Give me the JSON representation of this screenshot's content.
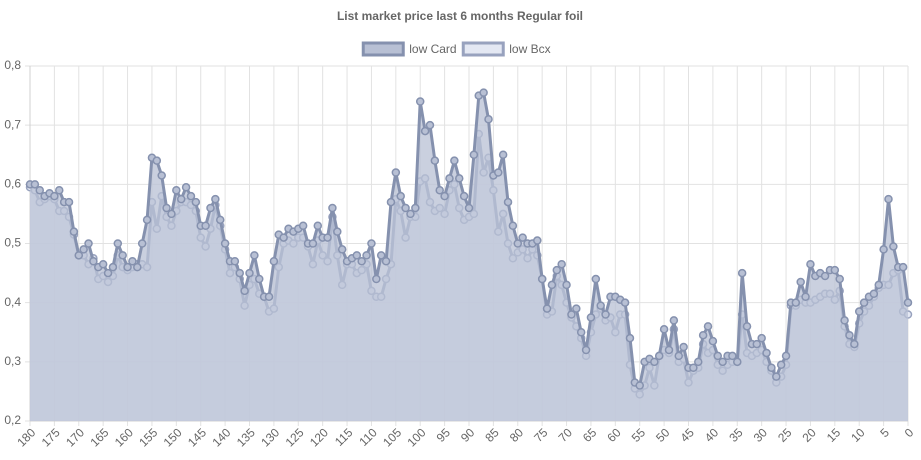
{
  "chart_data": {
    "type": "line",
    "title": "List market price last 6 months Regular foil",
    "categories": [
      180,
      null,
      null,
      null,
      null,
      175,
      null,
      null,
      null,
      null,
      170,
      null,
      null,
      null,
      null,
      165,
      null,
      null,
      null,
      null,
      160,
      null,
      null,
      null,
      null,
      155,
      null,
      null,
      null,
      null,
      150,
      null,
      null,
      null,
      null,
      145,
      null,
      null,
      null,
      null,
      140,
      null,
      null,
      null,
      null,
      135,
      null,
      null,
      null,
      null,
      130,
      null,
      null,
      null,
      null,
      125,
      null,
      null,
      null,
      null,
      120,
      null,
      null,
      null,
      null,
      115,
      null,
      null,
      null,
      null,
      110,
      null,
      null,
      null,
      null,
      105,
      null,
      null,
      null,
      null,
      100,
      null,
      null,
      null,
      null,
      95,
      null,
      null,
      null,
      null,
      90,
      null,
      null,
      null,
      null,
      85,
      null,
      null,
      null,
      null,
      80,
      null,
      null,
      null,
      null,
      75,
      null,
      null,
      null,
      null,
      70,
      null,
      null,
      null,
      null,
      65,
      null,
      null,
      null,
      null,
      60,
      null,
      null,
      null,
      null,
      55,
      null,
      null,
      null,
      null,
      50,
      null,
      null,
      null,
      null,
      45,
      null,
      null,
      null,
      null,
      40,
      null,
      null,
      null,
      null,
      35,
      null,
      null,
      null,
      null,
      30,
      null,
      null,
      null,
      null,
      25,
      null,
      null,
      null,
      null,
      20,
      null,
      null,
      null,
      null,
      15,
      null,
      null,
      null,
      null,
      10,
      null,
      null,
      null,
      null,
      5,
      null,
      null,
      null,
      null,
      0
    ],
    "series": [
      {
        "name": "low Card",
        "color": "#8591ae",
        "fill": "#b8c0d4",
        "values": [
          0.6,
          0.6,
          0.59,
          0.58,
          0.585,
          0.58,
          0.59,
          0.57,
          0.57,
          0.52,
          0.48,
          0.49,
          0.5,
          0.47,
          0.46,
          0.465,
          0.45,
          0.46,
          0.5,
          0.48,
          0.46,
          0.47,
          0.46,
          0.5,
          0.54,
          0.645,
          0.64,
          0.615,
          0.56,
          0.55,
          0.59,
          0.575,
          0.595,
          0.58,
          0.57,
          0.53,
          0.53,
          0.56,
          0.575,
          0.54,
          0.5,
          0.47,
          0.47,
          0.45,
          0.42,
          0.45,
          0.48,
          0.44,
          0.41,
          0.41,
          0.47,
          0.515,
          0.51,
          0.525,
          0.52,
          0.525,
          0.53,
          0.5,
          0.5,
          0.53,
          0.51,
          0.51,
          0.56,
          0.52,
          0.49,
          0.47,
          0.475,
          0.48,
          0.47,
          0.48,
          0.5,
          0.44,
          0.48,
          0.47,
          0.57,
          0.62,
          0.58,
          0.56,
          0.55,
          0.56,
          0.74,
          0.69,
          0.7,
          0.64,
          0.59,
          0.58,
          0.61,
          0.64,
          0.61,
          0.58,
          0.56,
          0.65,
          0.75,
          0.755,
          0.71,
          0.615,
          0.62,
          0.65,
          0.57,
          0.53,
          0.5,
          0.51,
          0.5,
          0.5,
          0.505,
          0.44,
          0.39,
          0.43,
          0.455,
          0.465,
          0.43,
          0.38,
          0.39,
          0.35,
          0.32,
          0.375,
          0.44,
          0.395,
          0.38,
          0.41,
          0.41,
          0.405,
          0.4,
          0.34,
          0.265,
          0.26,
          0.3,
          0.305,
          0.3,
          0.31,
          0.355,
          0.32,
          0.37,
          0.31,
          0.325,
          0.29,
          0.29,
          0.3,
          0.345,
          0.36,
          0.335,
          0.31,
          0.3,
          0.31,
          0.31,
          0.3,
          0.45,
          0.36,
          0.33,
          0.33,
          0.34,
          0.315,
          0.29,
          0.275,
          0.295,
          0.31,
          0.4,
          0.4,
          0.435,
          0.41,
          0.465,
          0.445,
          0.45,
          0.445,
          0.455,
          0.455,
          0.44,
          0.37,
          0.345,
          0.33,
          0.385,
          0.4,
          0.41,
          0.415,
          0.43,
          0.49,
          0.575,
          0.495,
          0.46,
          0.46,
          0.4
        ]
      },
      {
        "name": "low Bcx",
        "color": "#98a2be",
        "fill": "#e4e8f3",
        "values": [
          0.595,
          0.59,
          0.57,
          0.575,
          0.58,
          0.575,
          0.555,
          0.555,
          0.545,
          0.515,
          0.48,
          0.48,
          0.465,
          0.475,
          0.44,
          0.445,
          0.435,
          0.445,
          0.48,
          0.46,
          0.455,
          0.46,
          0.465,
          0.465,
          0.46,
          0.57,
          0.525,
          0.58,
          0.545,
          0.53,
          0.555,
          0.57,
          0.57,
          0.565,
          0.555,
          0.51,
          0.495,
          0.525,
          0.565,
          0.53,
          0.49,
          0.45,
          0.46,
          0.44,
          0.395,
          0.43,
          0.44,
          0.415,
          0.41,
          0.385,
          0.39,
          0.46,
          0.5,
          0.505,
          0.5,
          0.51,
          0.51,
          0.495,
          0.465,
          0.505,
          0.48,
          0.47,
          0.545,
          0.48,
          0.43,
          0.465,
          0.465,
          0.45,
          0.455,
          0.465,
          0.42,
          0.41,
          0.41,
          0.44,
          0.465,
          0.575,
          0.555,
          0.51,
          0.545,
          0.545,
          0.605,
          0.61,
          0.57,
          0.555,
          0.56,
          0.55,
          0.59,
          0.6,
          0.56,
          0.54,
          0.545,
          0.55,
          0.685,
          0.62,
          0.645,
          0.59,
          0.52,
          0.55,
          0.5,
          0.475,
          0.485,
          0.49,
          0.475,
          0.49,
          0.48,
          0.44,
          0.38,
          0.385,
          0.445,
          0.43,
          0.4,
          0.375,
          0.36,
          0.34,
          0.31,
          0.35,
          0.38,
          0.39,
          0.37,
          0.375,
          0.35,
          0.38,
          0.38,
          0.295,
          0.255,
          0.245,
          0.26,
          0.29,
          0.26,
          0.31,
          0.32,
          0.315,
          0.355,
          0.3,
          0.305,
          0.265,
          0.285,
          0.29,
          0.33,
          0.315,
          0.32,
          0.295,
          0.285,
          0.295,
          0.3,
          0.3,
          0.38,
          0.315,
          0.31,
          0.315,
          0.32,
          0.3,
          0.285,
          0.265,
          0.275,
          0.295,
          0.395,
          0.395,
          0.405,
          0.4,
          0.4,
          0.405,
          0.41,
          0.415,
          0.415,
          0.405,
          0.42,
          0.36,
          0.33,
          0.325,
          0.365,
          0.385,
          0.395,
          0.41,
          0.425,
          0.43,
          0.43,
          0.45,
          0.455,
          0.385,
          0.38
        ]
      }
    ],
    "ylim": [
      0.2,
      0.8
    ],
    "yticks": [
      {
        "value": 0.2,
        "label": "0,2"
      },
      {
        "value": 0.3,
        "label": "0,3"
      },
      {
        "value": 0.4,
        "label": "0,4"
      },
      {
        "value": 0.5,
        "label": "0,5"
      },
      {
        "value": 0.6,
        "label": "0,6"
      },
      {
        "value": 0.7,
        "label": "0,7"
      },
      {
        "value": 0.8,
        "label": "0,8"
      }
    ],
    "grid": true,
    "legend": "top"
  }
}
